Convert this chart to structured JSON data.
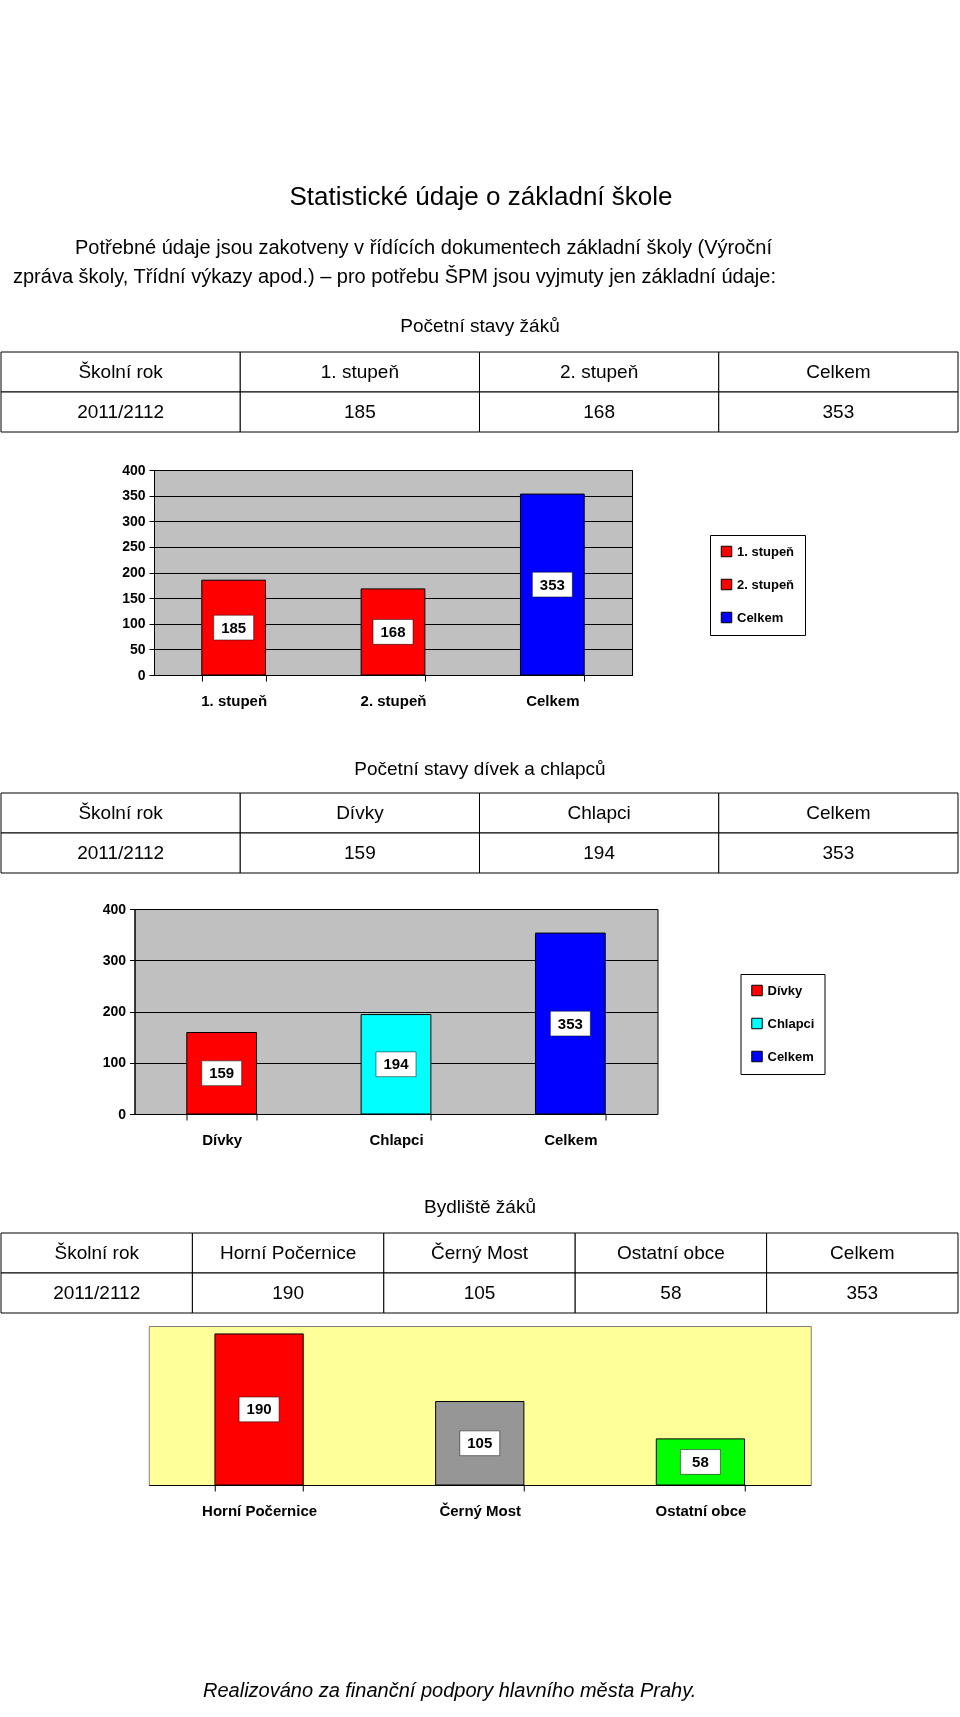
{
  "chart_data": [
    {
      "type": "other",
      "title": "Statistické údaje o základní škole",
      "subtitle": "Potřebné údaje jsou zakotveny v řídících dokumentech základní školy (Výroční zpráva školy, Třídní výkazy apod.) – pro potřebu ŠPM jsou vyjmuty jen základní údaje:"
    },
    {
      "type": "bar",
      "title": "Početní stavy žáků",
      "categories": [
        "1. stupeň",
        "2. stupeň",
        "Celkem"
      ],
      "stacked": true,
      "series": [
        {
          "name": "1. stupeň",
          "color": "#ff0000",
          "values": [
            185,
            null,
            null
          ]
        },
        {
          "name": "2. stupeň",
          "color": "#ff0000",
          "values": [
            null,
            168,
            null
          ]
        },
        {
          "name": "Celkem",
          "color": "#0000ff",
          "values": [
            null,
            null,
            353
          ]
        }
      ],
      "ylim": [
        0,
        400
      ],
      "yticks": [
        0,
        50,
        100,
        150,
        200,
        250,
        300,
        350,
        400
      ],
      "grid": "y",
      "legend": "right",
      "data_labels": true,
      "annotations": [
        "Školní rok",
        "2011/2112",
        "185",
        "168",
        "353"
      ]
    },
    {
      "type": "bar",
      "title": "Početní stavy dívek a chlapců",
      "categories": [
        "Dívky",
        "Chlapci",
        "Celkem"
      ],
      "stacked": true,
      "series": [
        {
          "name": "Dívky",
          "color": "#ff0000",
          "values": [
            159,
            null,
            null
          ]
        },
        {
          "name": "Chlapci",
          "color": "#00ffff",
          "values": [
            null,
            194,
            null
          ]
        },
        {
          "name": "Celkem",
          "color": "#0000ff",
          "values": [
            null,
            null,
            353
          ]
        }
      ],
      "ylim": [
        0,
        400
      ],
      "yticks": [
        0,
        100,
        200,
        300,
        400
      ],
      "grid": "y",
      "legend": "right",
      "data_labels": true,
      "annotations": [
        "Školní rok",
        "2011/2112",
        "159",
        "194",
        "353"
      ]
    },
    {
      "type": "bar",
      "title": "Bydliště žáků",
      "categories": [
        "Horní Počernice",
        "Černý Most",
        "Ostatní obce"
      ],
      "values": [
        190,
        105,
        58
      ],
      "colors": [
        "#ff0000",
        "#969696",
        "#00ff00"
      ],
      "tick_labels": "x",
      "data_labels": true,
      "annotations": [
        "Školní rok",
        "Celkem",
        "2011/2112",
        "190",
        "105",
        "58",
        "353"
      ]
    },
    {
      "type": "other",
      "annotations": [
        "Realizováno za finanční podpory hlavního města Prahy."
      ]
    }
  ]
}
